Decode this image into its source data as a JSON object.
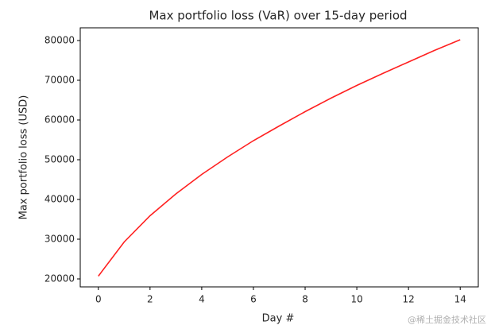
{
  "chart_data": {
    "type": "line",
    "title": "Max portfolio loss (VaR) over 15-day period",
    "x_label": "Day #",
    "y_label": "Max portfolio loss (USD)",
    "x": [
      0,
      1,
      2,
      3,
      4,
      5,
      6,
      7,
      8,
      9,
      10,
      11,
      12,
      13,
      14
    ],
    "series": [
      {
        "name": "VaR",
        "color": "#ff2020",
        "values": [
          20700,
          29300,
          35900,
          41400,
          46300,
          50700,
          54800,
          58500,
          62100,
          65500,
          68700,
          71700,
          74600,
          77500,
          80200
        ]
      }
    ],
    "xlim": [
      -0.7,
      14.7
    ],
    "xticks": [
      0,
      2,
      4,
      6,
      8,
      10,
      12,
      14
    ],
    "ylim": [
      18000,
      83200
    ],
    "yticks": [
      20000,
      30000,
      40000,
      50000,
      60000,
      70000,
      80000
    ],
    "grid": false
  },
  "watermark": "@稀土掘金技术社区"
}
